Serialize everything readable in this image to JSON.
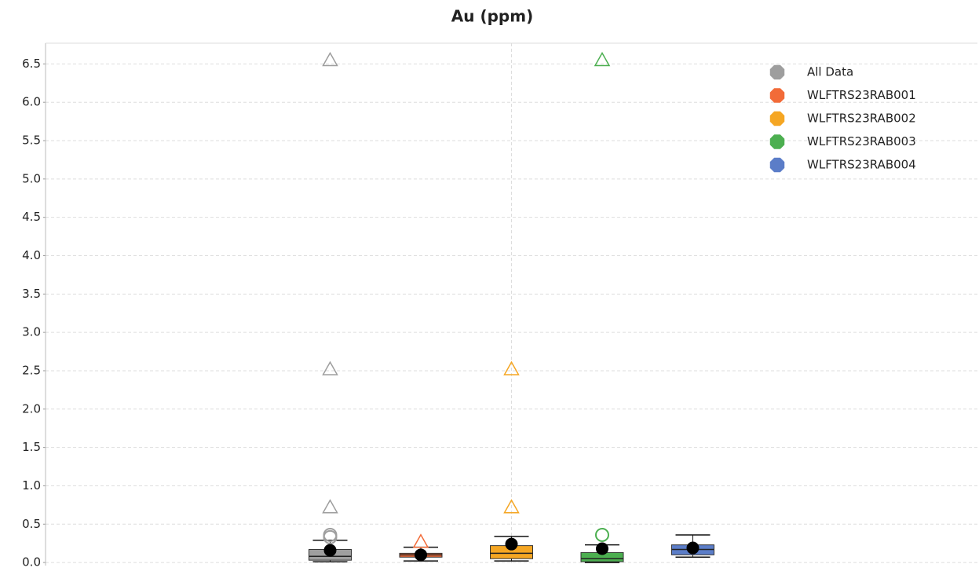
{
  "chart_data": {
    "type": "box",
    "title": "Au (ppm)",
    "ylim": [
      -0.04,
      6.77
    ],
    "yticks": [
      {
        "value": 0,
        "label": "0.0"
      },
      0.5,
      {
        "value": 1,
        "label": "1.0"
      },
      1.5,
      {
        "value": 2,
        "label": "2.0"
      },
      2.5,
      {
        "value": 3,
        "label": "3.0"
      },
      3.5,
      {
        "value": 4,
        "label": "4.0"
      },
      4.5,
      {
        "value": 5,
        "label": "5.0"
      },
      5.5,
      {
        "value": 6,
        "label": "6.0"
      },
      6.5
    ],
    "grid": true,
    "legend": "top-right",
    "series": [
      {
        "name": "All Data",
        "color": "#9e9e9e",
        "min": 0.01,
        "q1": 0.03,
        "median": 0.08,
        "q3": 0.17,
        "max": 0.29,
        "mean": 0.16,
        "outliers": [
          0.33,
          0.36
        ],
        "extremes": [
          0.72,
          2.52,
          6.55
        ]
      },
      {
        "name": "WLFTRS23RAB001",
        "color": "#f26b38",
        "min": 0.02,
        "q1": 0.07,
        "median": 0.1,
        "q3": 0.12,
        "max": 0.2,
        "mean": 0.1,
        "outliers": [],
        "extremes": [
          0.27
        ]
      },
      {
        "name": "WLFTRS23RAB002",
        "color": "#f5a623",
        "min": 0.02,
        "q1": 0.05,
        "median": 0.12,
        "q3": 0.22,
        "max": 0.34,
        "mean": 0.24,
        "outliers": [],
        "extremes": [
          0.72,
          2.52
        ]
      },
      {
        "name": "WLFTRS23RAB003",
        "color": "#4caf50",
        "min": 0.0,
        "q1": 0.01,
        "median": 0.05,
        "q3": 0.13,
        "max": 0.23,
        "mean": 0.18,
        "outliers": [
          0.36
        ],
        "extremes": [
          6.55
        ]
      },
      {
        "name": "WLFTRS23RAB004",
        "color": "#5b7dc8",
        "min": 0.07,
        "q1": 0.1,
        "median": 0.17,
        "q3": 0.23,
        "max": 0.36,
        "mean": 0.19,
        "outliers": [],
        "extremes": []
      }
    ]
  }
}
